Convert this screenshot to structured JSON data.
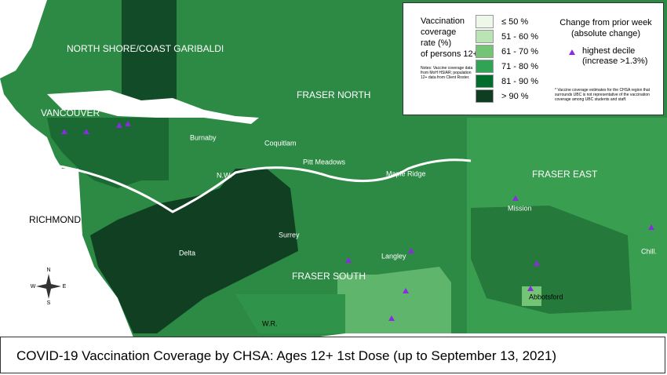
{
  "title": "COVID-19 Vaccination Coverage by CHSA: Ages 12+ 1st Dose (up to September 13, 2021)",
  "regions": [
    "NORTH SHORE/COAST GARIBALDI",
    "VANCOUVER",
    "RICHMOND",
    "FRASER NORTH",
    "FRASER EAST",
    "FRASER SOUTH"
  ],
  "places": [
    "Burnaby",
    "Coquitlam",
    "Pitt Meadows",
    "Maple Ridge",
    "N.W.",
    "Mission",
    "Surrey",
    "Delta",
    "Langley",
    "Abbotsford",
    "Chill.",
    "W.R."
  ],
  "compass": [
    "N",
    "S",
    "E",
    "W"
  ],
  "legend": {
    "title_lines": [
      "Vaccination",
      "coverage",
      "rate (%)",
      "of persons 12+"
    ],
    "note": "Notes: Vaccine coverage data from MoH HSIAR; population 12+ data from Client Roster.",
    "classes": [
      {
        "label": "≤ 50 %",
        "color": "#edf8e9"
      },
      {
        "label": "51 - 60 %",
        "color": "#bae4b3"
      },
      {
        "label": "61 - 70 %",
        "color": "#74c476"
      },
      {
        "label": "71 - 80 %",
        "color": "#31a354"
      },
      {
        "label": "81 - 90 %",
        "color": "#006d2c"
      },
      {
        "label": "> 90 %",
        "color": "#0f3d22"
      }
    ],
    "change_title": "Change from prior week (absolute change)",
    "change_item": "highest decile (increase >1.3%)",
    "footnote": "* Vaccine coverage estimates for the CHSA region that surrounds UBC is not representative of the vaccination coverage among UBC students and staff."
  }
}
